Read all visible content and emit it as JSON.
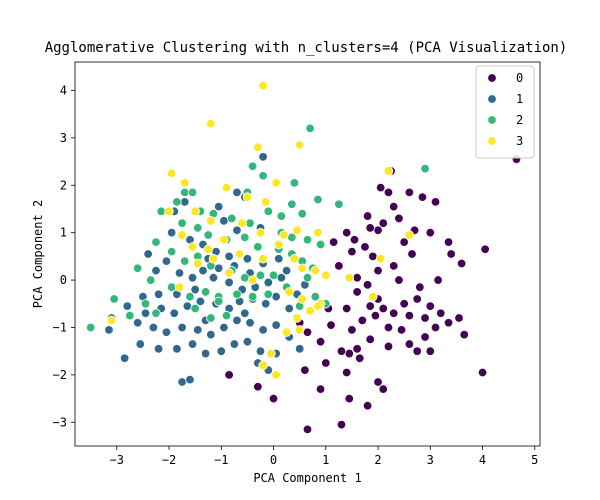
{
  "chart_data": {
    "type": "scatter",
    "title": "Agglomerative Clustering with n_clusters=4 (PCA Visualization)",
    "xlabel": "PCA Component 1",
    "ylabel": "PCA Component 2",
    "xlim": [
      -3.8,
      5.1
    ],
    "ylim": [
      -3.5,
      4.6
    ],
    "xticks": [
      -3,
      -2,
      -1,
      0,
      1,
      2,
      3,
      4,
      5
    ],
    "yticks": [
      -3,
      -2,
      -1,
      0,
      1,
      2,
      3,
      4
    ],
    "grid": false,
    "legend": {
      "placement": "top-right",
      "entries": [
        {
          "label": "0",
          "color": "#440154"
        },
        {
          "label": "1",
          "color": "#31688e"
        },
        {
          "label": "2",
          "color": "#35b779"
        },
        {
          "label": "3",
          "color": "#fde725"
        }
      ]
    },
    "series": [
      {
        "name": "0",
        "color": "#440154",
        "points": [
          [
            4.65,
            2.55
          ],
          [
            2.25,
            2.3
          ],
          [
            2.05,
            1.95
          ],
          [
            2.2,
            1.85
          ],
          [
            2.6,
            1.85
          ],
          [
            3.1,
            1.65
          ],
          [
            2.85,
            1.75
          ],
          [
            1.8,
            1.35
          ],
          [
            2.3,
            1.55
          ],
          [
            2.1,
            1.2
          ],
          [
            2.0,
            1.05
          ],
          [
            2.4,
            1.3
          ],
          [
            2.7,
            1.05
          ],
          [
            3.0,
            1.0
          ],
          [
            2.5,
            0.8
          ],
          [
            1.4,
            1.0
          ],
          [
            1.55,
            0.85
          ],
          [
            1.75,
            0.7
          ],
          [
            1.5,
            0.6
          ],
          [
            1.9,
            0.5
          ],
          [
            3.35,
            0.8
          ],
          [
            3.4,
            0.55
          ],
          [
            4.05,
            0.65
          ],
          [
            3.6,
            0.35
          ],
          [
            2.3,
            0.3
          ],
          [
            2.0,
            0.2
          ],
          [
            1.6,
            0.05
          ],
          [
            1.8,
            -0.1
          ],
          [
            2.4,
            0.0
          ],
          [
            2.8,
            -0.15
          ],
          [
            3.15,
            0.0
          ],
          [
            2.0,
            -0.4
          ],
          [
            1.85,
            -0.55
          ],
          [
            2.1,
            -0.6
          ],
          [
            2.3,
            -0.7
          ],
          [
            2.5,
            -0.5
          ],
          [
            2.6,
            -0.75
          ],
          [
            2.75,
            -0.4
          ],
          [
            2.9,
            -0.8
          ],
          [
            3.0,
            -0.55
          ],
          [
            3.2,
            -0.7
          ],
          [
            3.35,
            -0.9
          ],
          [
            3.55,
            -0.8
          ],
          [
            3.65,
            -1.15
          ],
          [
            3.1,
            -1.0
          ],
          [
            2.9,
            -1.2
          ],
          [
            2.6,
            -1.35
          ],
          [
            2.75,
            -1.5
          ],
          [
            3.0,
            -1.5
          ],
          [
            2.2,
            -1.0
          ],
          [
            2.45,
            -1.05
          ],
          [
            2.2,
            -1.4
          ],
          [
            1.85,
            -1.25
          ],
          [
            1.6,
            -1.45
          ],
          [
            1.45,
            -1.55
          ],
          [
            1.3,
            -1.5
          ],
          [
            1.5,
            -1.05
          ],
          [
            1.1,
            -0.95
          ],
          [
            1.7,
            -0.85
          ],
          [
            1.4,
            -0.6
          ],
          [
            1.05,
            -0.6
          ],
          [
            0.85,
            -0.55
          ],
          [
            0.5,
            -0.9
          ],
          [
            0.65,
            -1.1
          ],
          [
            0.9,
            -1.3
          ],
          [
            1.0,
            -1.75
          ],
          [
            0.6,
            -1.9
          ],
          [
            1.4,
            -1.95
          ],
          [
            1.65,
            -1.65
          ],
          [
            2.0,
            -2.15
          ],
          [
            2.1,
            -2.3
          ],
          [
            1.45,
            -2.5
          ],
          [
            1.8,
            -2.65
          ],
          [
            1.3,
            -3.05
          ],
          [
            0.65,
            -3.15
          ],
          [
            0.9,
            -2.3
          ],
          [
            4.0,
            -1.95
          ],
          [
            1.6,
            -0.25
          ],
          [
            1.15,
            0.8
          ],
          [
            -0.85,
            -2.0
          ],
          [
            -0.3,
            -2.25
          ],
          [
            0.0,
            -2.5
          ],
          [
            1.85,
            1.1
          ],
          [
            2.65,
            0.55
          ],
          [
            1.25,
            0.3
          ],
          [
            1.95,
            -0.75
          ]
        ]
      },
      {
        "name": "1",
        "color": "#31688e",
        "points": [
          [
            -0.2,
            2.6
          ],
          [
            -0.7,
            1.85
          ],
          [
            -0.55,
            1.75
          ],
          [
            -1.7,
            1.65
          ],
          [
            -1.05,
            1.55
          ],
          [
            -0.95,
            1.25
          ],
          [
            -0.7,
            1.05
          ],
          [
            -0.25,
            1.1
          ],
          [
            -1.95,
            1.0
          ],
          [
            -1.6,
            0.85
          ],
          [
            -1.35,
            0.75
          ],
          [
            -1.1,
            0.6
          ],
          [
            -1.25,
            0.45
          ],
          [
            -0.85,
            0.5
          ],
          [
            -0.5,
            0.45
          ],
          [
            -2.4,
            0.55
          ],
          [
            -2.05,
            0.4
          ],
          [
            -2.25,
            0.2
          ],
          [
            -1.8,
            0.15
          ],
          [
            -1.55,
            0.05
          ],
          [
            -1.35,
            0.2
          ],
          [
            -1.05,
            0.25
          ],
          [
            -0.75,
            0.3
          ],
          [
            -0.45,
            0.15
          ],
          [
            -0.2,
            0.35
          ],
          [
            0.1,
            0.45
          ],
          [
            0.25,
            0.2
          ],
          [
            -0.1,
            -0.05
          ],
          [
            -0.35,
            -0.15
          ],
          [
            -0.6,
            -0.2
          ],
          [
            -0.85,
            -0.05
          ],
          [
            -1.15,
            0.05
          ],
          [
            -1.5,
            -0.2
          ],
          [
            -1.85,
            -0.3
          ],
          [
            -2.2,
            -0.3
          ],
          [
            -2.5,
            -0.35
          ],
          [
            -2.8,
            -0.55
          ],
          [
            -2.45,
            -0.7
          ],
          [
            -2.15,
            -0.6
          ],
          [
            -1.9,
            -0.7
          ],
          [
            -1.65,
            -0.55
          ],
          [
            -1.4,
            -0.45
          ],
          [
            -1.1,
            -0.5
          ],
          [
            -0.85,
            -0.6
          ],
          [
            -0.65,
            -0.45
          ],
          [
            -0.4,
            -0.4
          ],
          [
            -0.15,
            -0.5
          ],
          [
            0.05,
            -0.35
          ],
          [
            0.3,
            -0.6
          ],
          [
            0.45,
            -0.3
          ],
          [
            0.6,
            -0.1
          ],
          [
            -2.3,
            -1.0
          ],
          [
            -2.05,
            -1.1
          ],
          [
            -1.75,
            -1.0
          ],
          [
            -1.45,
            -1.05
          ],
          [
            -1.2,
            -1.15
          ],
          [
            -0.95,
            -1.0
          ],
          [
            -0.7,
            -0.85
          ],
          [
            -0.45,
            -0.9
          ],
          [
            -0.2,
            -1.05
          ],
          [
            0.05,
            -0.95
          ],
          [
            0.3,
            -1.2
          ],
          [
            -2.55,
            -1.35
          ],
          [
            -2.2,
            -1.45
          ],
          [
            -1.85,
            -1.45
          ],
          [
            -1.55,
            -1.35
          ],
          [
            -1.3,
            -1.55
          ],
          [
            -1.0,
            -1.5
          ],
          [
            -0.75,
            -1.35
          ],
          [
            -0.5,
            -1.3
          ],
          [
            -0.25,
            -1.5
          ],
          [
            0.05,
            -1.55
          ],
          [
            -1.75,
            -2.15
          ],
          [
            -1.6,
            -2.1
          ],
          [
            -0.3,
            -1.75
          ],
          [
            -0.1,
            -1.9
          ],
          [
            -2.85,
            -1.65
          ],
          [
            -3.1,
            -0.8
          ],
          [
            -3.15,
            -1.05
          ],
          [
            -2.6,
            -0.9
          ],
          [
            -1.9,
            1.45
          ],
          [
            -1.3,
            -0.85
          ],
          [
            0.15,
            0.05
          ],
          [
            0.5,
            -1.45
          ],
          [
            -0.55,
            -0.7
          ]
        ]
      },
      {
        "name": "2",
        "color": "#35b779",
        "points": [
          [
            0.7,
            3.2
          ],
          [
            -0.4,
            2.4
          ],
          [
            -0.2,
            2.2
          ],
          [
            0.4,
            2.05
          ],
          [
            -0.5,
            1.85
          ],
          [
            -0.15,
            1.65
          ],
          [
            0.35,
            1.6
          ],
          [
            -1.7,
            1.85
          ],
          [
            -1.55,
            1.85
          ],
          [
            -1.85,
            1.65
          ],
          [
            -1.4,
            1.45
          ],
          [
            -1.15,
            1.4
          ],
          [
            -0.8,
            1.3
          ],
          [
            -0.45,
            1.2
          ],
          [
            -0.1,
            1.45
          ],
          [
            0.15,
            1.35
          ],
          [
            0.55,
            1.4
          ],
          [
            0.85,
            1.7
          ],
          [
            -2.15,
            1.45
          ],
          [
            -1.75,
            1.2
          ],
          [
            -1.45,
            1.1
          ],
          [
            -1.25,
            0.95
          ],
          [
            -0.9,
            0.85
          ],
          [
            -0.55,
            0.9
          ],
          [
            -0.3,
            0.7
          ],
          [
            0.1,
            0.65
          ],
          [
            0.35,
            0.9
          ],
          [
            0.65,
            0.85
          ],
          [
            0.9,
            0.75
          ],
          [
            1.25,
            1.6
          ],
          [
            -2.25,
            0.8
          ],
          [
            -1.95,
            0.6
          ],
          [
            -1.7,
            0.4
          ],
          [
            -1.45,
            0.5
          ],
          [
            -1.2,
            0.3
          ],
          [
            -0.8,
            0.2
          ],
          [
            -0.55,
            0.05
          ],
          [
            -0.25,
            0.1
          ],
          [
            0.0,
            0.1
          ],
          [
            0.35,
            0.55
          ],
          [
            0.55,
            0.4
          ],
          [
            0.75,
            0.25
          ],
          [
            -2.6,
            0.25
          ],
          [
            -2.35,
            0.0
          ],
          [
            -1.95,
            -0.15
          ],
          [
            -1.6,
            -0.35
          ],
          [
            -1.3,
            -0.25
          ],
          [
            -1.05,
            -0.35
          ],
          [
            -0.7,
            -0.3
          ],
          [
            -0.4,
            -0.35
          ],
          [
            -0.1,
            -0.3
          ],
          [
            0.25,
            -0.15
          ],
          [
            0.5,
            -0.55
          ],
          [
            0.8,
            -0.35
          ],
          [
            1.0,
            -0.5
          ],
          [
            -3.5,
            -1.0
          ],
          [
            -3.05,
            -0.4
          ],
          [
            -2.75,
            -0.75
          ],
          [
            -2.45,
            -0.5
          ],
          [
            -2.25,
            -0.7
          ],
          [
            -1.5,
            -0.6
          ],
          [
            -1.2,
            -0.8
          ],
          [
            -0.9,
            -0.75
          ],
          [
            0.65,
            0.05
          ],
          [
            2.9,
            2.35
          ],
          [
            -1.05,
            -0.45
          ],
          [
            0.15,
            1.0
          ]
        ]
      },
      {
        "name": "3",
        "color": "#fde725",
        "points": [
          [
            -0.2,
            4.1
          ],
          [
            -1.2,
            3.3
          ],
          [
            -0.3,
            2.8
          ],
          [
            0.5,
            2.85
          ],
          [
            -1.95,
            2.25
          ],
          [
            -1.7,
            2.05
          ],
          [
            -0.9,
            1.95
          ],
          [
            0.05,
            2.05
          ],
          [
            -0.5,
            1.75
          ],
          [
            -0.15,
            1.65
          ],
          [
            -1.5,
            1.45
          ],
          [
            -1.2,
            1.25
          ],
          [
            -2.0,
            1.45
          ],
          [
            -0.6,
            1.2
          ],
          [
            -0.25,
            1.0
          ],
          [
            0.2,
            0.95
          ],
          [
            0.45,
            1.05
          ],
          [
            0.85,
            1.0
          ],
          [
            -1.75,
            0.95
          ],
          [
            -1.55,
            0.7
          ],
          [
            -1.25,
            0.65
          ],
          [
            -0.95,
            0.85
          ],
          [
            -0.65,
            0.55
          ],
          [
            0.1,
            0.75
          ],
          [
            0.4,
            0.45
          ],
          [
            0.55,
            0.25
          ],
          [
            0.8,
            0.2
          ],
          [
            2.2,
            2.3
          ],
          [
            2.6,
            0.95
          ],
          [
            2.05,
            0.45
          ],
          [
            1.0,
            0.1
          ],
          [
            1.45,
            0.05
          ],
          [
            0.9,
            -0.5
          ],
          [
            0.55,
            -0.4
          ],
          [
            1.9,
            -0.35
          ],
          [
            0.25,
            -1.1
          ],
          [
            0.45,
            -0.8
          ],
          [
            -0.2,
            0.45
          ],
          [
            0.3,
            -0.25
          ],
          [
            -1.15,
            0.45
          ],
          [
            -0.4,
            0.0
          ],
          [
            -0.85,
            0.15
          ],
          [
            -1.45,
            0.35
          ],
          [
            -1.8,
            -0.15
          ],
          [
            -3.1,
            -0.85
          ],
          [
            -0.05,
            -1.55
          ],
          [
            0.85,
            -0.55
          ],
          [
            0.7,
            -0.65
          ],
          [
            0.5,
            -1.05
          ],
          [
            0.05,
            -2.0
          ],
          [
            -0.2,
            -1.8
          ]
        ]
      }
    ]
  }
}
